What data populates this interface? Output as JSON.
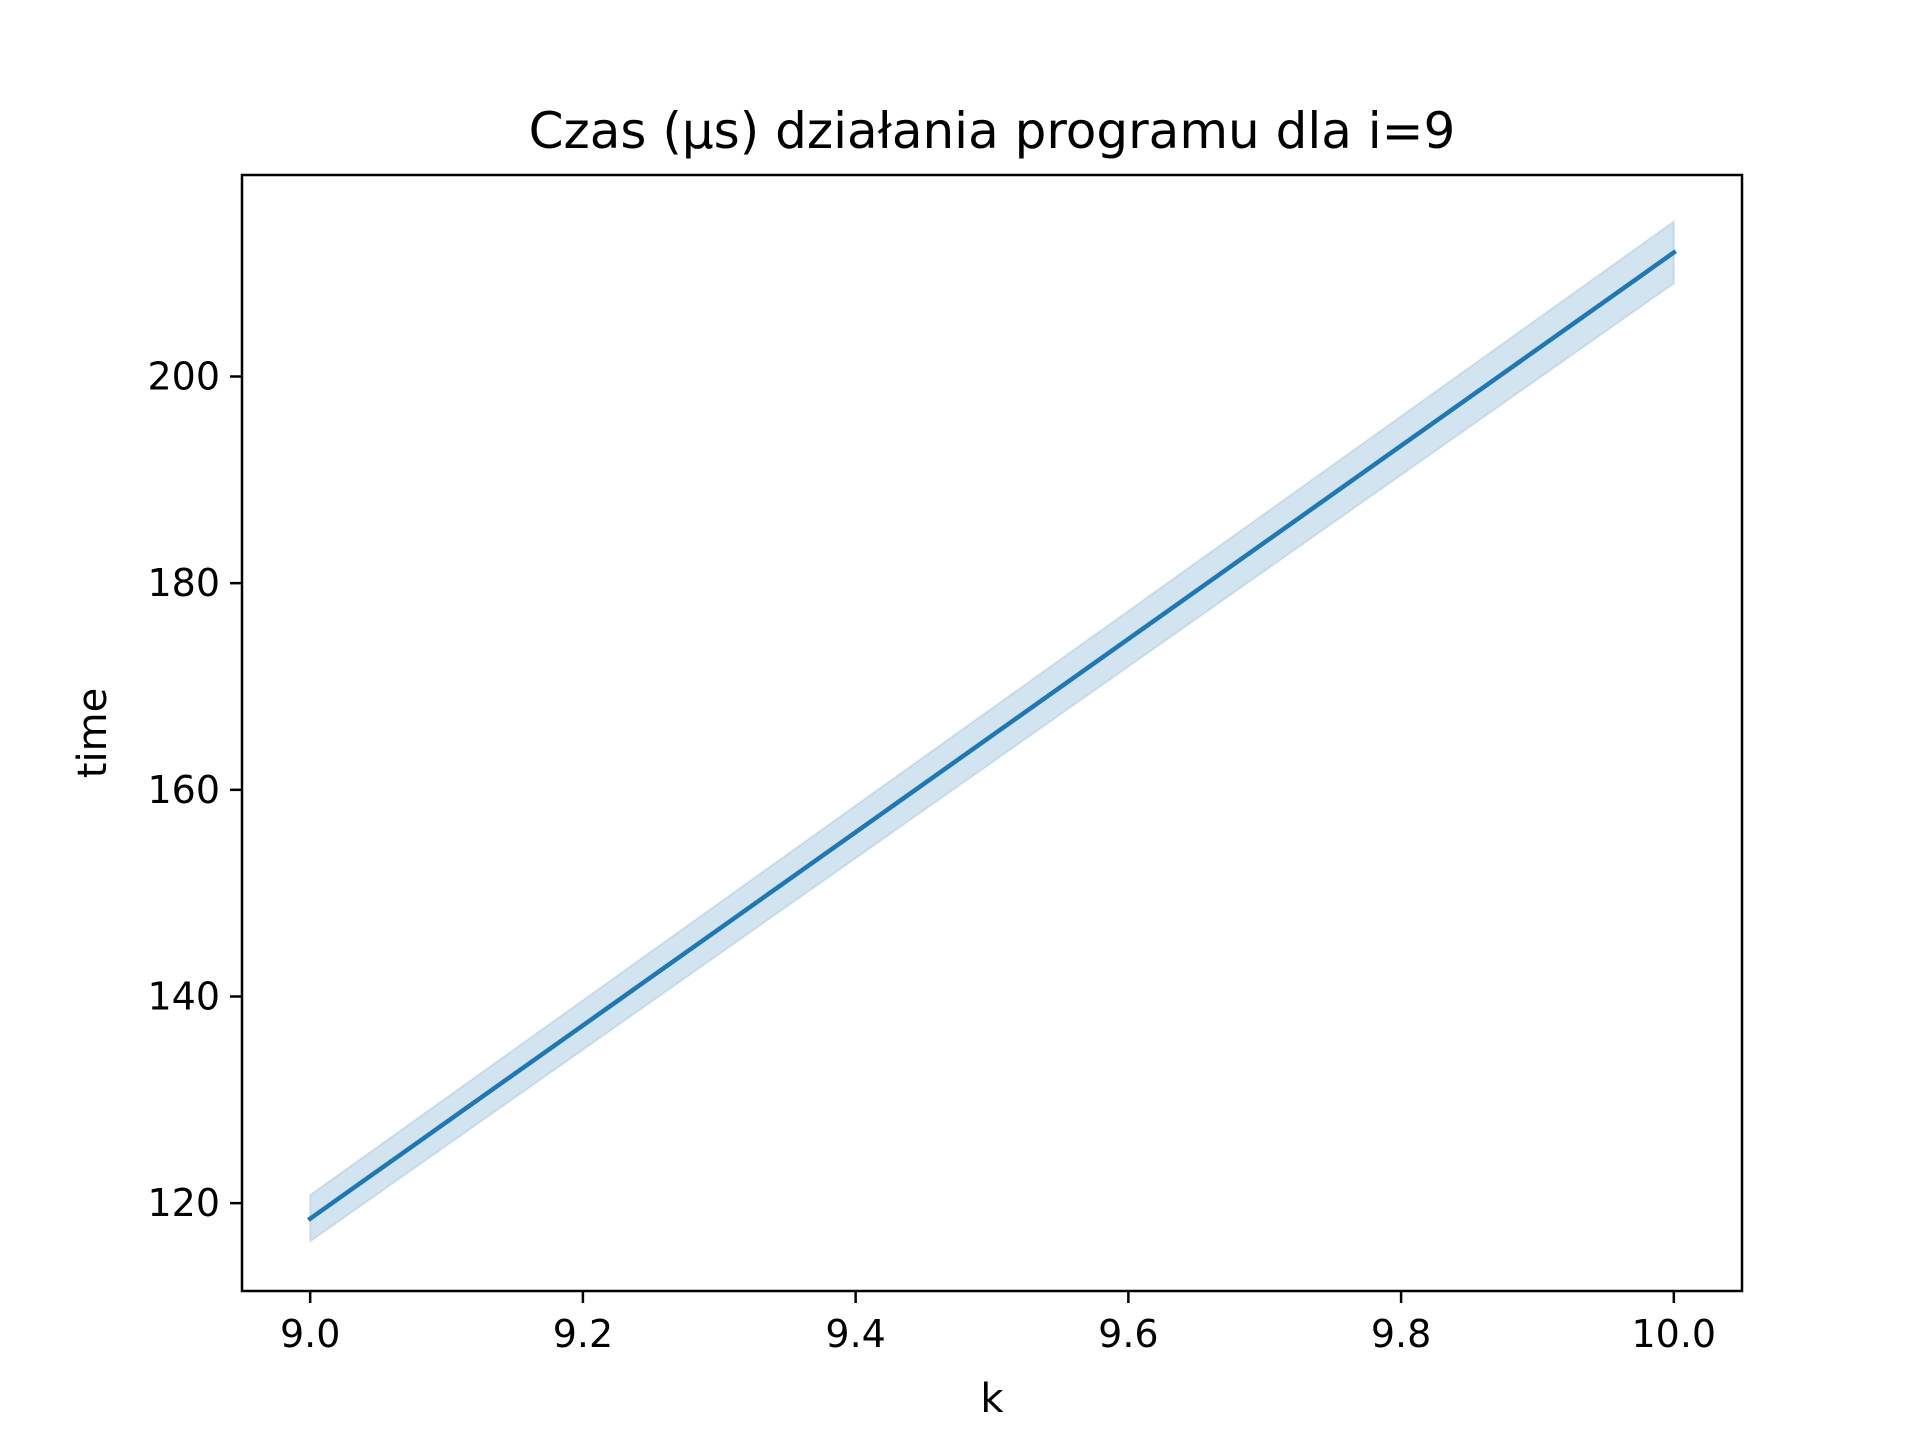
{
  "chart_data": {
    "type": "line",
    "title": "Czas (µs) działania programu dla i=9",
    "xlabel": "k",
    "ylabel": "time",
    "xlim": [
      8.95,
      10.05
    ],
    "ylim": [
      111.5,
      219.5
    ],
    "xticks": [
      9.0,
      9.2,
      9.4,
      9.6,
      9.8,
      10.0
    ],
    "xtick_labels": [
      "9.0",
      "9.2",
      "9.4",
      "9.6",
      "9.8",
      "10.0"
    ],
    "yticks": [
      120,
      140,
      160,
      180,
      200
    ],
    "ytick_labels": [
      "120",
      "140",
      "160",
      "180",
      "200"
    ],
    "grid": false,
    "legend": "none",
    "series": [
      {
        "color": "#1f77b4",
        "x": [
          9.0,
          10.0
        ],
        "y": [
          118.5,
          212.0
        ],
        "ci_lower": [
          116.3,
          209.0
        ],
        "ci_upper": [
          120.8,
          215.0
        ]
      }
    ]
  }
}
